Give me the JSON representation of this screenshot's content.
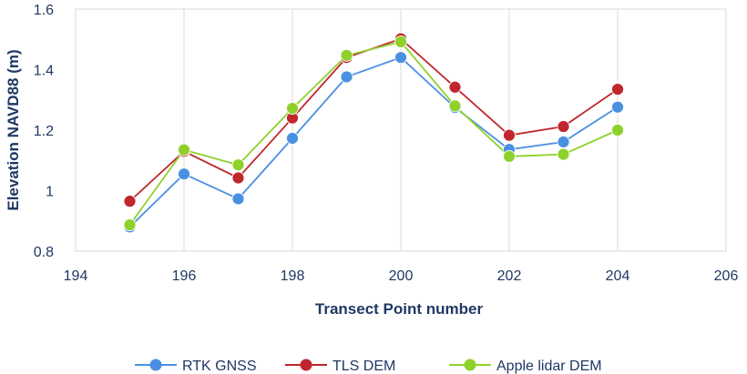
{
  "chart_data": {
    "type": "line",
    "title": "",
    "xlabel": "Transect Point number",
    "ylabel": "Elevation NAVD88 (m)",
    "xlim": [
      194,
      206
    ],
    "ylim": [
      0.8,
      1.6
    ],
    "x_ticks": [
      "194",
      "196",
      "198",
      "200",
      "202",
      "204",
      "206"
    ],
    "y_ticks": [
      "0.8",
      "1",
      "1.2",
      "1.4",
      "1.6"
    ],
    "grid": "vertical",
    "legend": "bottom",
    "x": [
      195,
      196,
      197,
      198,
      199,
      200,
      201,
      202,
      203,
      204
    ],
    "series": [
      {
        "name": "RTK GNSS",
        "color": "#4a90e2",
        "values": [
          0.88,
          1.055,
          0.973,
          1.173,
          1.376,
          1.44,
          1.275,
          1.136,
          1.161,
          1.276
        ]
      },
      {
        "name": "TLS DEM",
        "color": "#c0272d",
        "values": [
          0.965,
          1.13,
          1.042,
          1.24,
          1.44,
          1.502,
          1.342,
          1.183,
          1.212,
          1.335
        ]
      },
      {
        "name": "Apple lidar DEM",
        "color": "#8fd12b",
        "values": [
          0.887,
          1.135,
          1.085,
          1.272,
          1.447,
          1.492,
          1.28,
          1.113,
          1.12,
          1.2
        ]
      }
    ]
  }
}
